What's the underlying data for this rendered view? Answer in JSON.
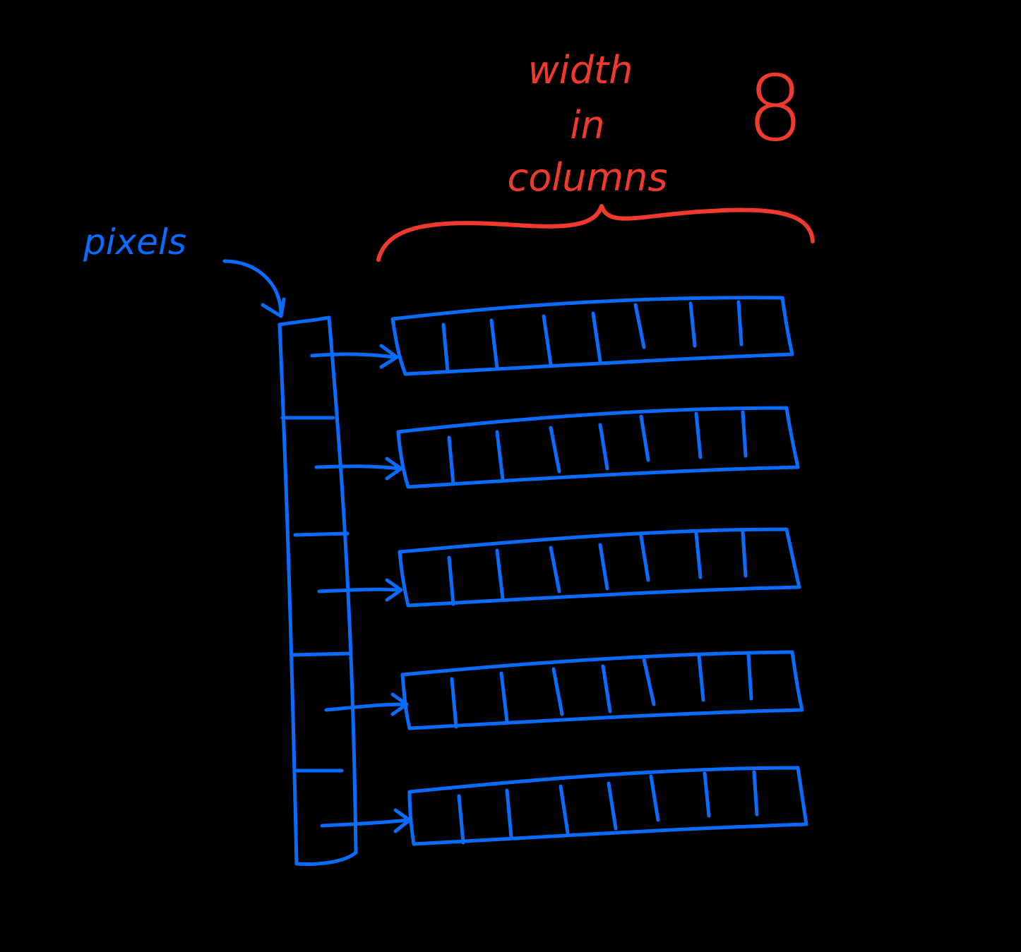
{
  "labels": {
    "pixels": "pixels",
    "width_line1": "width",
    "width_line2": "in",
    "width_line3": "columns",
    "width_value": "8"
  },
  "diagram": {
    "pointer_array_slots": 5,
    "columns_per_row": 8,
    "row_count": 5
  },
  "colors": {
    "background": "#000000",
    "blue_ink": "#0a6cff",
    "red_ink": "#f03a2e"
  }
}
